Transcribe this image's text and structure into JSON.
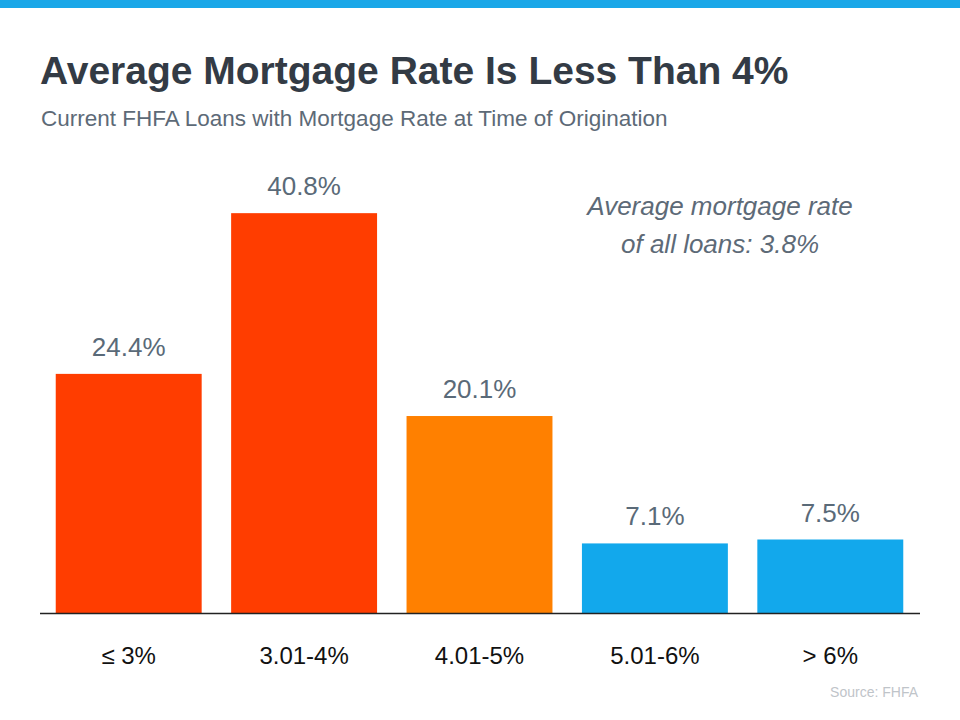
{
  "chart_data": {
    "type": "bar",
    "title": "Average Mortgage Rate Is Less Than 4%",
    "subtitle": "Current FHFA Loans with Mortgage Rate at Time of Origination",
    "categories": [
      "≤ 3%",
      "3.01-4%",
      "4.01-5%",
      "5.01-6%",
      "> 6%"
    ],
    "values": [
      24.4,
      40.8,
      20.1,
      7.1,
      7.5
    ],
    "value_labels": [
      "24.4%",
      "40.8%",
      "20.1%",
      "7.1%",
      "7.5%"
    ],
    "colors": [
      "#ff3d00",
      "#ff3d00",
      "#ff8000",
      "#12a8ec",
      "#12a8ec"
    ],
    "ylim": [
      0,
      50
    ],
    "grid": false,
    "data_labels": true,
    "tick_labels": "x",
    "annotation": [
      "Average mortgage rate",
      "of all loans: 3.8%"
    ],
    "source": "Source: FHFA"
  }
}
